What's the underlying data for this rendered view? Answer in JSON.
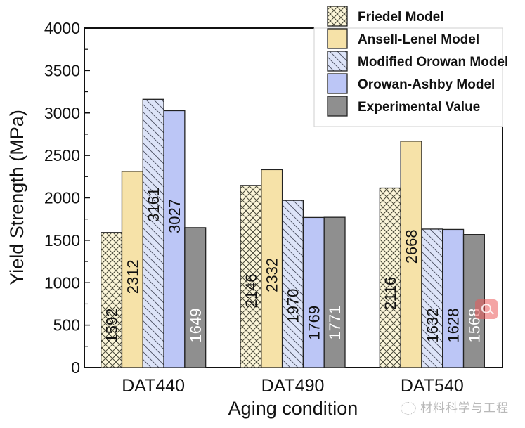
{
  "chart_data": {
    "type": "bar",
    "title": "",
    "xlabel": "Aging condition",
    "ylabel": "Yield Strength (MPa)",
    "ylim": [
      0,
      4000
    ],
    "yticks": [
      0,
      500,
      1000,
      1500,
      2000,
      2500,
      3000,
      3500,
      4000
    ],
    "ytick_labels": [
      "0",
      "500",
      "1000",
      "1500",
      "2000",
      "2500",
      "3000",
      "3500",
      "4000"
    ],
    "minor_ticks": true,
    "grid": false,
    "categories": [
      "DAT440",
      "DAT490",
      "DAT540"
    ],
    "legend_position": "top-right",
    "series": [
      {
        "name": "Friedel Model",
        "values": [
          1592,
          2146,
          2116
        ],
        "fill": "#fbf5d8",
        "pattern": "crosshatch",
        "label_color": "#111111"
      },
      {
        "name": "Ansell-Lenel Model",
        "values": [
          2312,
          2332,
          2668
        ],
        "fill": "#f6e2a8",
        "pattern": "none",
        "label_color": "#111111"
      },
      {
        "name": "Modified Orowan Model",
        "values": [
          3161,
          1970,
          1632
        ],
        "fill": "#dde4f8",
        "pattern": "diagonal",
        "label_color": "#111111"
      },
      {
        "name": "Orowan-Ashby Model",
        "values": [
          3027,
          1769,
          1628
        ],
        "fill": "#bcc6f6",
        "pattern": "none",
        "label_color": "#111111"
      },
      {
        "name": "Experimental Value",
        "values": [
          1649,
          1771,
          1568
        ],
        "fill": "#8f8f8f",
        "pattern": "none",
        "label_color": "#ffffff"
      }
    ]
  },
  "watermark": {
    "text": "材料科学与工程",
    "icon": "wechat-icon"
  },
  "overlay": {
    "icon": "zoom-search-icon"
  }
}
